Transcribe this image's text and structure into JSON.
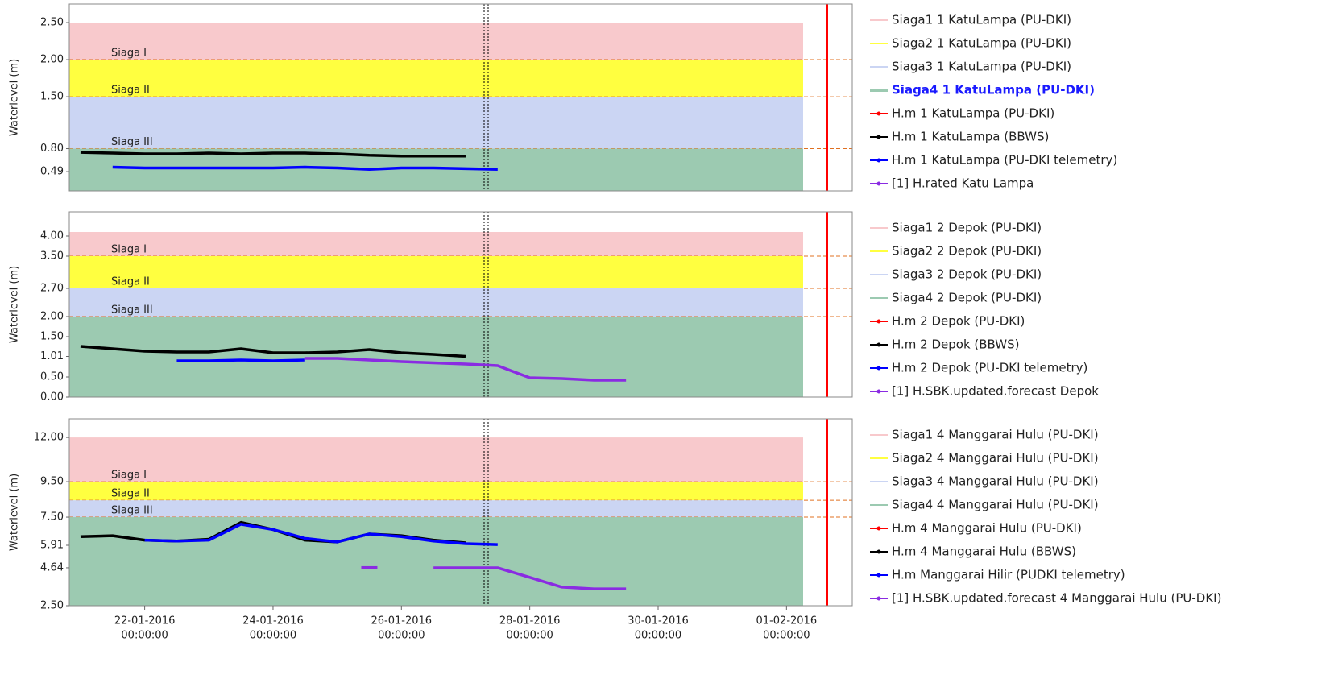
{
  "chart_data": [
    {
      "type": "line",
      "ylabel": "Waterlevel (m)",
      "x": [
        "2016-01-21T00:00",
        "2016-01-21T12:00",
        "2016-01-22T00:00",
        "2016-01-22T12:00",
        "2016-01-23T00:00",
        "2016-01-23T12:00",
        "2016-01-24T00:00",
        "2016-01-24T12:00",
        "2016-01-25T00:00",
        "2016-01-25T12:00",
        "2016-01-26T00:00",
        "2016-01-26T12:00",
        "2016-01-27T00:00",
        "2016-01-27T12:00",
        "2016-01-28T00:00",
        "2016-01-28T12:00",
        "2016-01-29T00:00",
        "2016-01-29T12:00"
      ],
      "xlim": [
        "2016-01-20T19:48",
        "2016-02-02T00:36"
      ],
      "ylim": [
        0.23,
        2.75
      ],
      "yticks": [
        0.49,
        {
          "value": 0.8,
          "label": "0.80"
        },
        {
          "value": 1.5,
          "label": "1.50"
        },
        {
          "value": 2,
          "label": "2.00"
        },
        {
          "value": 2.5,
          "label": "2.50"
        }
      ],
      "bands": [
        {
          "name": "Siaga1 1 KatuLampa (PU-DKI)",
          "label": "Siaga I",
          "color": "#f8c9cc",
          "from": 2.0,
          "to": 2.5
        },
        {
          "name": "Siaga2 1 KatuLampa (PU-DKI)",
          "label": "Siaga II",
          "color": "#ffff40",
          "from": 1.5,
          "to": 2.0
        },
        {
          "name": "Siaga3 1 KatuLampa (PU-DKI)",
          "label": "Siaga III",
          "color": "#cbd5f3",
          "from": 0.8,
          "to": 1.5
        },
        {
          "name": "Siaga4 1 KatuLampa (PU-DKI)",
          "color": "#9ccab1",
          "from": 0.23,
          "to": 0.8,
          "highlight": true
        }
      ],
      "series": [
        {
          "name": "H.m 1 KatuLampa (PU-DKI)",
          "color": "#ff0000",
          "values": [
            null,
            null,
            null,
            null,
            null,
            null,
            null,
            null,
            null,
            null,
            null,
            null,
            null,
            null,
            null,
            null,
            null,
            null
          ]
        },
        {
          "name": "H.m 1 KatuLampa (BBWS)",
          "color": "#000000",
          "values": [
            0.75,
            0.74,
            0.73,
            0.73,
            0.74,
            0.73,
            0.74,
            0.74,
            0.73,
            0.71,
            0.7,
            0.7,
            0.7,
            null,
            null,
            null,
            null,
            null
          ]
        },
        {
          "name": "H.m 1 KatuLampa (PU-DKI telemetry)",
          "color": "#0000ff",
          "values": [
            null,
            0.55,
            0.54,
            0.54,
            0.54,
            0.54,
            0.54,
            0.55,
            0.54,
            0.52,
            0.54,
            0.54,
            0.53,
            0.52,
            null,
            null,
            null,
            null
          ]
        },
        {
          "name": "[1] H.rated Katu Lampa",
          "color": "#8a2be2",
          "values": [
            null,
            null,
            null,
            null,
            null,
            null,
            null,
            null,
            null,
            null,
            null,
            null,
            null,
            null,
            null,
            null,
            null,
            null
          ]
        }
      ]
    },
    {
      "type": "line",
      "ylabel": "Waterlevel (m)",
      "x": [
        "2016-01-21T00:00",
        "2016-01-21T12:00",
        "2016-01-22T00:00",
        "2016-01-22T12:00",
        "2016-01-23T00:00",
        "2016-01-23T12:00",
        "2016-01-24T00:00",
        "2016-01-24T12:00",
        "2016-01-25T00:00",
        "2016-01-25T12:00",
        "2016-01-26T00:00",
        "2016-01-26T12:00",
        "2016-01-27T00:00",
        "2016-01-27T12:00",
        "2016-01-28T00:00",
        "2016-01-28T12:00",
        "2016-01-29T00:00",
        "2016-01-29T12:00"
      ],
      "xlim": [
        "2016-01-20T19:48",
        "2016-02-02T00:36"
      ],
      "ylim": [
        0,
        4.6
      ],
      "yticks": [
        {
          "value": 0,
          "label": "0.00"
        },
        {
          "value": 0.5,
          "label": "0.50"
        },
        1.01,
        {
          "value": 1.5,
          "label": "1.50"
        },
        {
          "value": 2,
          "label": "2.00"
        },
        {
          "value": 2.7,
          "label": "2.70"
        },
        {
          "value": 3.5,
          "label": "3.50"
        },
        {
          "value": 4,
          "label": "4.00"
        }
      ],
      "bands": [
        {
          "name": "Siaga1 2 Depok (PU-DKI)",
          "label": "Siaga I",
          "color": "#f8c9cc",
          "from": 3.5,
          "to": 4.1
        },
        {
          "name": "Siaga2 2 Depok (PU-DKI)",
          "label": "Siaga II",
          "color": "#ffff40",
          "from": 2.7,
          "to": 3.5
        },
        {
          "name": "Siaga3 2 Depok (PU-DKI)",
          "label": "Siaga III",
          "color": "#cbd5f3",
          "from": 2.0,
          "to": 2.7
        },
        {
          "name": "Siaga4 2 Depok (PU-DKI)",
          "color": "#9ccab1",
          "from": 0,
          "to": 2.0
        }
      ],
      "series": [
        {
          "name": "H.m 2 Depok (PU-DKI)",
          "color": "#ff0000",
          "values": [
            null,
            null,
            null,
            null,
            null,
            null,
            null,
            null,
            null,
            null,
            null,
            null,
            null,
            null,
            null,
            null,
            null,
            null
          ]
        },
        {
          "name": "H.m 2 Depok (BBWS)",
          "color": "#000000",
          "values": [
            1.26,
            1.2,
            1.14,
            1.12,
            1.12,
            1.2,
            1.1,
            1.1,
            1.12,
            1.18,
            1.1,
            1.06,
            1.01,
            null,
            null,
            null,
            null,
            null
          ]
        },
        {
          "name": "H.m 2 Depok (PU-DKI telemetry)",
          "color": "#0000ff",
          "values": [
            null,
            null,
            null,
            0.9,
            0.9,
            0.92,
            0.9,
            0.92,
            null,
            null,
            null,
            null,
            null,
            null,
            null,
            null,
            null,
            null
          ]
        },
        {
          "name": "[1] H.SBK.updated.forecast Depok",
          "color": "#8a2be2",
          "values": [
            null,
            null,
            null,
            null,
            null,
            null,
            null,
            0.96,
            0.96,
            0.92,
            0.88,
            0.85,
            0.82,
            0.78,
            0.48,
            0.46,
            0.42,
            0.42
          ]
        }
      ]
    },
    {
      "type": "line",
      "ylabel": "Waterlevel (m)",
      "x": [
        "2016-01-21T00:00",
        "2016-01-21T12:00",
        "2016-01-22T00:00",
        "2016-01-22T12:00",
        "2016-01-23T00:00",
        "2016-01-23T12:00",
        "2016-01-24T00:00",
        "2016-01-24T12:00",
        "2016-01-25T00:00",
        "2016-01-25T12:00",
        "2016-01-26T00:00",
        "2016-01-26T12:00",
        "2016-01-27T00:00",
        "2016-01-27T12:00",
        "2016-01-28T00:00",
        "2016-01-28T12:00",
        "2016-01-29T00:00",
        "2016-01-29T12:00"
      ],
      "xlim": [
        "2016-01-20T19:48",
        "2016-02-02T00:36"
      ],
      "xticks": [
        {
          "value": "2016-01-22T00:00",
          "label": [
            "22-01-2016",
            "00:00:00"
          ]
        },
        {
          "value": "2016-01-24T00:00",
          "label": [
            "24-01-2016",
            "00:00:00"
          ]
        },
        {
          "value": "2016-01-26T00:00",
          "label": [
            "26-01-2016",
            "00:00:00"
          ]
        },
        {
          "value": "2016-01-28T00:00",
          "label": [
            "28-01-2016",
            "00:00:00"
          ]
        },
        {
          "value": "2016-01-30T00:00",
          "label": [
            "30-01-2016",
            "00:00:00"
          ]
        },
        {
          "value": "2016-02-01T00:00",
          "label": [
            "01-02-2016",
            "00:00:00"
          ]
        }
      ],
      "ylim": [
        2.5,
        13.05
      ],
      "yticks": [
        {
          "value": 2.5,
          "label": "2.50"
        },
        4.64,
        5.91,
        {
          "value": 7.5,
          "label": "7.50"
        },
        {
          "value": 9.5,
          "label": "9.50"
        },
        {
          "value": 12,
          "label": "12.00"
        }
      ],
      "bands": [
        {
          "name": "Siaga1 4 Manggarai Hulu (PU-DKI)",
          "label": "Siaga I",
          "color": "#f8c9cc",
          "from": 9.5,
          "to": 12.0
        },
        {
          "name": "Siaga2 4 Manggarai Hulu (PU-DKI)",
          "label": "Siaga II",
          "color": "#ffff40",
          "from": 8.45,
          "to": 9.5
        },
        {
          "name": "Siaga3 4 Manggarai Hulu (PU-DKI)",
          "label": "Siaga III",
          "color": "#cbd5f3",
          "from": 7.5,
          "to": 8.45
        },
        {
          "name": "Siaga4 4 Manggarai Hulu (PU-DKI)",
          "color": "#9ccab1",
          "from": 2.5,
          "to": 7.5
        }
      ],
      "series": [
        {
          "name": "H.m 4 Manggarai Hulu (PU-DKI)",
          "color": "#ff0000",
          "values": [
            null,
            null,
            null,
            null,
            null,
            null,
            null,
            null,
            null,
            null,
            null,
            null,
            null,
            null,
            null,
            null,
            null,
            null
          ]
        },
        {
          "name": "H.m 4 Manggarai Hulu (BBWS)",
          "color": "#000000",
          "values": [
            6.4,
            6.45,
            6.2,
            6.15,
            6.25,
            7.2,
            6.8,
            6.2,
            6.1,
            6.55,
            6.45,
            6.2,
            6.05,
            null,
            null,
            null,
            null,
            null
          ]
        },
        {
          "name": "H.m Manggarai Hilir (PUDKI telemetry)",
          "color": "#0000ff",
          "values": [
            null,
            null,
            6.2,
            6.15,
            6.2,
            7.1,
            6.8,
            6.3,
            6.1,
            6.55,
            6.4,
            6.15,
            6.0,
            5.95,
            null,
            null,
            null,
            null
          ]
        },
        {
          "name": "[1] H.SBK.updated.forecast 4 Manggarai Hulu (PU-DKI)",
          "color": "#8a2be2",
          "values": [
            null,
            null,
            null,
            null,
            null,
            null,
            null,
            null,
            null,
            4.64,
            null,
            4.64,
            4.64,
            4.64,
            4.1,
            3.55,
            3.45,
            3.45
          ]
        }
      ]
    }
  ]
}
